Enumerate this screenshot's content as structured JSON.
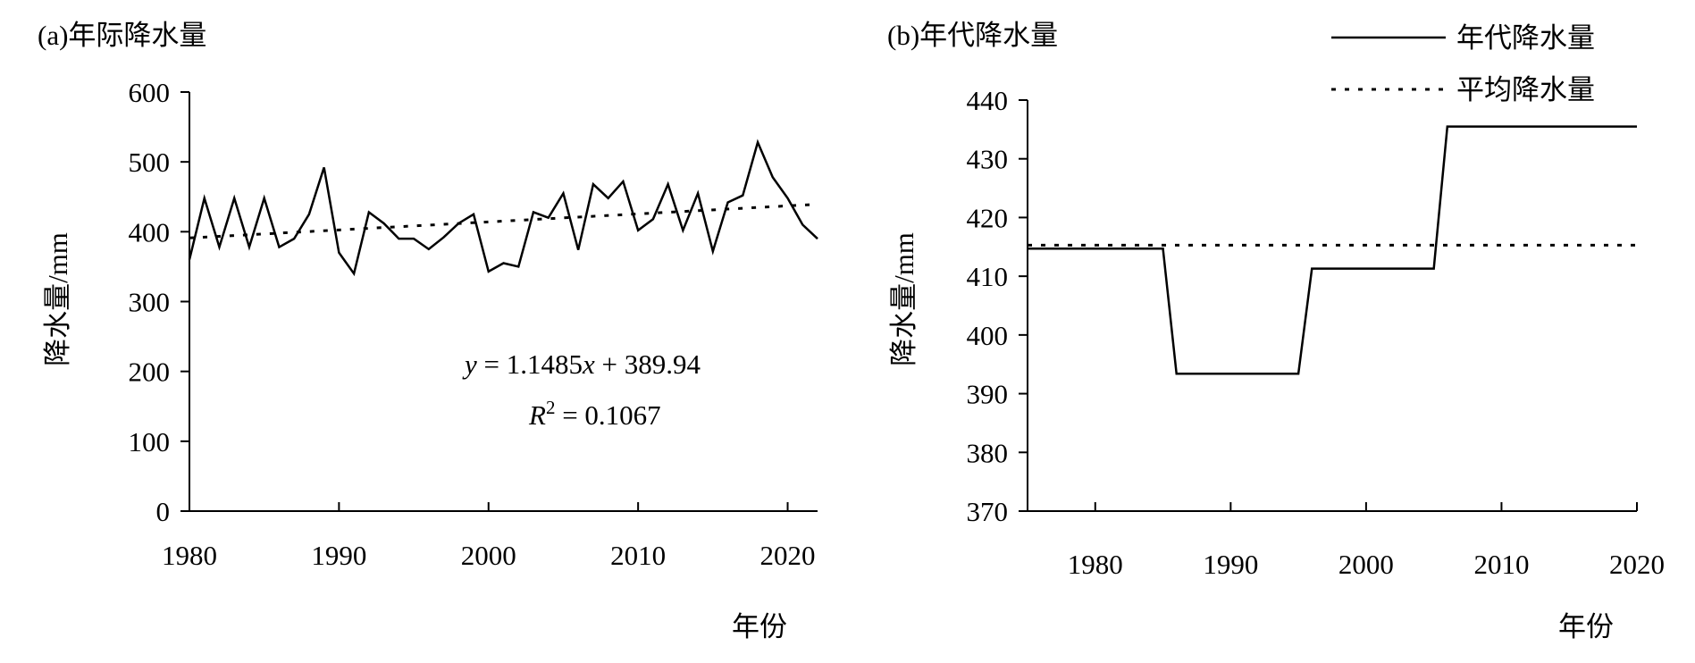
{
  "chart_data": [
    {
      "type": "line",
      "title": "(a)年际降水量",
      "xlabel": "年份",
      "ylabel": "降水量/mm",
      "xlim": [
        1980,
        2022
      ],
      "ylim": [
        0,
        600
      ],
      "xticks": [
        1980,
        1990,
        2000,
        2010,
        2020
      ],
      "yticks": [
        0,
        100,
        200,
        300,
        400,
        500,
        600
      ],
      "grid": false,
      "series": [
        {
          "style": "solid",
          "x": [
            1980,
            1981,
            1982,
            1983,
            1984,
            1985,
            1986,
            1987,
            1988,
            1989,
            1990,
            1991,
            1992,
            1993,
            1994,
            1995,
            1996,
            1997,
            1998,
            1999,
            2000,
            2001,
            2002,
            2003,
            2004,
            2005,
            2006,
            2007,
            2008,
            2009,
            2010,
            2011,
            2012,
            2013,
            2014,
            2015,
            2016,
            2017,
            2018,
            2019,
            2020,
            2021,
            2022
          ],
          "values": [
            360,
            448,
            378,
            448,
            378,
            448,
            378,
            390,
            425,
            492,
            370,
            340,
            428,
            412,
            390,
            390,
            375,
            392,
            412,
            425,
            343,
            355,
            350,
            428,
            420,
            455,
            374,
            468,
            448,
            472,
            402,
            418,
            468,
            402,
            455,
            372,
            442,
            452,
            528,
            478,
            448,
            410,
            390
          ]
        },
        {
          "style": "dotted",
          "kind": "trendline",
          "x": [
            1980,
            2022
          ],
          "values": [
            391.09,
            439.33
          ]
        }
      ],
      "annotations": {
        "equation": {
          "y": "y",
          "eq1": " = 1.1485",
          "x": "x",
          "eq2": " + 389.94"
        },
        "r2": {
          "r": "R",
          "sup": "2",
          "rest": " = 0.1067"
        }
      }
    },
    {
      "type": "line",
      "title": "(b)年代降水量",
      "xlabel": "年份",
      "ylabel": "降水量/mm",
      "xlim": [
        1975,
        2020
      ],
      "ylim": [
        370,
        440
      ],
      "xticks": [
        1980,
        1990,
        2000,
        2010,
        2020
      ],
      "yticks": [
        370,
        380,
        390,
        400,
        410,
        420,
        430,
        440
      ],
      "grid": false,
      "legend_position": "top-right",
      "series": [
        {
          "name": "年代降水量",
          "style": "solid",
          "x": [
            1975,
            1985,
            1986,
            1995,
            1996,
            2005,
            2006,
            2020
          ],
          "values": [
            414.7,
            414.7,
            393.4,
            393.4,
            411.3,
            411.3,
            435.5,
            435.5
          ]
        },
        {
          "name": "平均降水量",
          "style": "dotted",
          "x": [
            1975,
            2020
          ],
          "values": [
            415.3,
            415.3
          ]
        }
      ]
    }
  ]
}
